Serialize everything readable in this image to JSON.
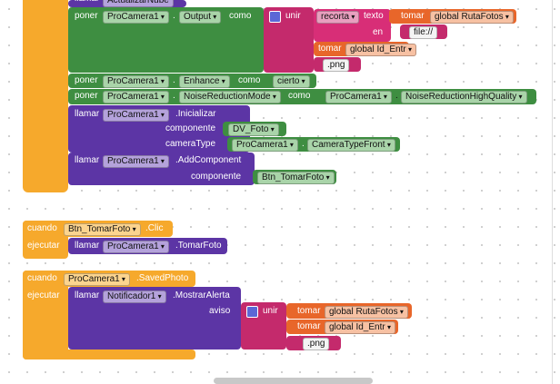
{
  "top_block": {
    "verb": "llamar",
    "method": "ActualizarNube"
  },
  "set_output": {
    "verb": "poner",
    "component": "ProCamera1",
    "dot": ".",
    "property": "Output",
    "as": "como",
    "join": "unir",
    "substring": "recorta",
    "text_label": "texto",
    "at_label": "en",
    "get1": "tomar",
    "var1": "global RutaFotos",
    "string1": "file://",
    "get2": "tomar",
    "var2": "global Id_Entr",
    "string2": ".png"
  },
  "set_enhance": {
    "verb": "poner",
    "component": "ProCamera1",
    "dot": ".",
    "property": "Enhance",
    "as": "como",
    "value": "cierto"
  },
  "set_noise": {
    "verb": "poner",
    "component": "ProCamera1",
    "dot": ".",
    "property": "NoiseReductionMode",
    "as": "como",
    "value_component": "ProCamera1",
    "value_dot": ".",
    "value": "NoiseReductionHighQuality"
  },
  "call_init": {
    "verb": "llamar",
    "component": "ProCamera1",
    "method": ".Inicializar",
    "arg1_label": "componente",
    "arg1": "DV_Foto",
    "arg2_label": "cameraType",
    "arg2_component": "ProCamera1",
    "arg2_dot": ".",
    "arg2": "CameraTypeFront"
  },
  "call_add": {
    "verb": "llamar",
    "component": "ProCamera1",
    "method": ".AddComponent",
    "arg_label": "componente",
    "arg": "Btn_TomarFoto"
  },
  "event_click": {
    "when": "cuando",
    "component": "Btn_TomarFoto",
    "event": ".Clic",
    "do": "ejecutar",
    "verb": "llamar",
    "call_component": "ProCamera1",
    "method": ".TomarFoto"
  },
  "event_saved": {
    "when": "cuando",
    "component": "ProCamera1",
    "event": ".SavedPhoto",
    "do": "ejecutar",
    "verb": "llamar",
    "call_component": "Notificador1",
    "method": ".MostrarAlerta",
    "arg_label": "aviso",
    "join": "unir",
    "get1": "tomar",
    "var1": "global RutaFotos",
    "get2": "tomar",
    "var2": "global Id_Entr",
    "string": ".png"
  }
}
